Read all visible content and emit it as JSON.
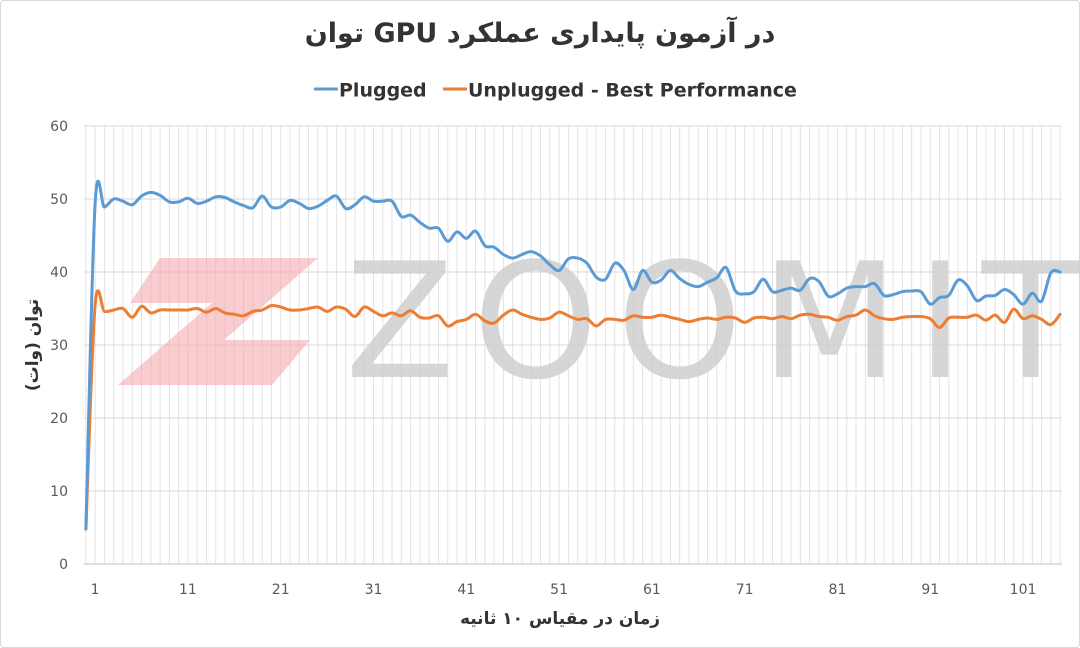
{
  "chart_data": {
    "type": "line",
    "title": "توان GPU در آزمون پایداری عملکرد",
    "xlabel": "زمان در مقیاس ۱۰ ثانیه",
    "ylabel": "توان (وات)",
    "ylim": [
      0,
      60
    ],
    "yticks": [
      0,
      10,
      20,
      30,
      40,
      50,
      60
    ],
    "xlim": [
      1,
      105
    ],
    "xticks": [
      1,
      11,
      21,
      31,
      41,
      51,
      61,
      71,
      81,
      91,
      101
    ],
    "grid": true,
    "legend": "top",
    "watermark": "ZOOMIT",
    "colors": {
      "Plugged": "#5b9bd5",
      "Unplugged - Best Performance": "#ed7d31"
    },
    "series": [
      {
        "name": "Plugged",
        "x": [
          0,
          1,
          2,
          3,
          4,
          5,
          6,
          7,
          8,
          9,
          10,
          11,
          12,
          13,
          14,
          15,
          16,
          17,
          18,
          19,
          20,
          21,
          22,
          23,
          24,
          25,
          26,
          27,
          28,
          29,
          30,
          31,
          32,
          33,
          34,
          35,
          36,
          37,
          38,
          39,
          40,
          41,
          42,
          43,
          44,
          45,
          46,
          47,
          48,
          49,
          50,
          51,
          52,
          53,
          54,
          55,
          56,
          57,
          58,
          59,
          60,
          61,
          62,
          63,
          64,
          65,
          66,
          67,
          68,
          69,
          70,
          71,
          72,
          73,
          74,
          75,
          76,
          77,
          78,
          79,
          80,
          81,
          82,
          83,
          84,
          85,
          86,
          87,
          88,
          89,
          90,
          91,
          92,
          93,
          94,
          95,
          96,
          97,
          98,
          99,
          100,
          101,
          102,
          103,
          104,
          105
        ],
        "values": [
          4.8,
          49.3,
          48.9,
          50.0,
          49.7,
          49.2,
          50.4,
          50.9,
          50.5,
          49.6,
          49.6,
          50.1,
          49.4,
          49.7,
          50.3,
          50.2,
          49.6,
          49.1,
          48.8,
          50.4,
          48.9,
          48.9,
          49.8,
          49.4,
          48.7,
          49.0,
          49.8,
          50.4,
          48.7,
          49.2,
          50.3,
          49.7,
          49.7,
          49.7,
          47.6,
          47.8,
          46.8,
          46.0,
          46.0,
          44.2,
          45.5,
          44.6,
          45.6,
          43.6,
          43.4,
          42.4,
          41.9,
          42.4,
          42.8,
          42.2,
          41.0,
          40.2,
          41.8,
          41.9,
          41.2,
          39.3,
          39.0,
          41.2,
          40.2,
          37.6,
          40.2,
          38.6,
          38.9,
          40.2,
          39.1,
          38.3,
          38.0,
          38.6,
          39.2,
          40.6,
          37.4,
          37.0,
          37.3,
          39.0,
          37.3,
          37.5,
          37.8,
          37.5,
          39.1,
          38.7,
          36.7,
          37.0,
          37.8,
          38.0,
          38.0,
          38.4,
          36.8,
          36.9,
          37.3,
          37.4,
          37.3,
          35.6,
          36.5,
          36.8,
          38.9,
          38.1,
          36.1,
          36.7,
          36.8,
          37.6,
          36.9,
          35.6,
          37.1,
          36.0,
          39.9,
          40.0
        ]
      },
      {
        "name": "Unplugged - Best Performance",
        "x": [
          0,
          1,
          2,
          3,
          4,
          5,
          6,
          7,
          8,
          9,
          10,
          11,
          12,
          13,
          14,
          15,
          16,
          17,
          18,
          19,
          20,
          21,
          22,
          23,
          24,
          25,
          26,
          27,
          28,
          29,
          30,
          31,
          32,
          33,
          34,
          35,
          36,
          37,
          38,
          39,
          40,
          41,
          42,
          43,
          44,
          45,
          46,
          47,
          48,
          49,
          50,
          51,
          52,
          53,
          54,
          55,
          56,
          57,
          58,
          59,
          60,
          61,
          62,
          63,
          64,
          65,
          66,
          67,
          68,
          69,
          70,
          71,
          72,
          73,
          74,
          75,
          76,
          77,
          78,
          79,
          80,
          81,
          82,
          83,
          84,
          85,
          86,
          87,
          88,
          89,
          90,
          91,
          92,
          93,
          94,
          95,
          96,
          97,
          98,
          99,
          100,
          101,
          102,
          103,
          104,
          105
        ],
        "values": [
          4.8,
          35.4,
          34.6,
          34.8,
          35.0,
          33.8,
          35.3,
          34.4,
          34.8,
          34.8,
          34.8,
          34.8,
          35.0,
          34.5,
          35.0,
          34.4,
          34.2,
          34.0,
          34.6,
          34.8,
          35.4,
          35.2,
          34.8,
          34.8,
          35.0,
          35.2,
          34.6,
          35.2,
          34.9,
          33.9,
          35.2,
          34.6,
          34.0,
          34.4,
          34.0,
          34.7,
          33.8,
          33.7,
          34.0,
          32.6,
          33.2,
          33.5,
          34.2,
          33.3,
          33.0,
          34.1,
          34.8,
          34.2,
          33.8,
          33.5,
          33.7,
          34.5,
          34.0,
          33.5,
          33.6,
          32.6,
          33.5,
          33.5,
          33.4,
          34.0,
          33.8,
          33.8,
          34.1,
          33.8,
          33.5,
          33.2,
          33.5,
          33.7,
          33.5,
          33.8,
          33.7,
          33.1,
          33.7,
          33.8,
          33.6,
          33.9,
          33.6,
          34.1,
          34.2,
          33.9,
          33.8,
          33.4,
          33.9,
          34.1,
          34.8,
          34.0,
          33.6,
          33.5,
          33.8,
          33.9,
          33.9,
          33.6,
          32.4,
          33.7,
          33.8,
          33.8,
          34.1,
          33.4,
          34.1,
          33.1,
          34.9,
          33.6,
          34.0,
          33.5,
          32.8,
          34.2
        ]
      }
    ]
  }
}
